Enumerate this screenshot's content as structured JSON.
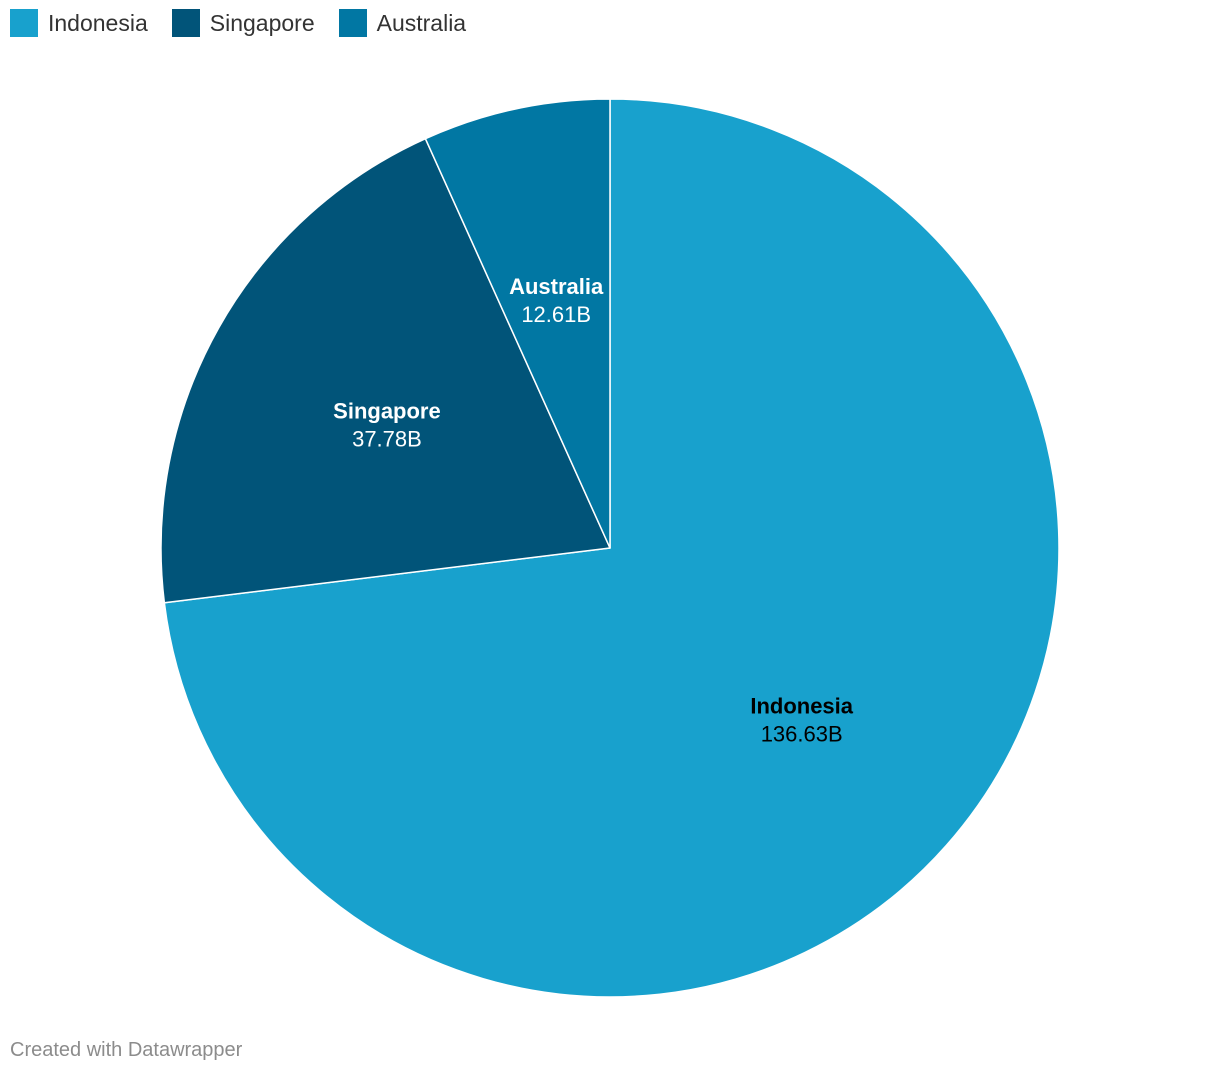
{
  "chart_data": {
    "type": "pie",
    "title": "",
    "slices": [
      {
        "label": "Indonesia",
        "value": 136.63,
        "value_label": "136.63B",
        "color": "#18a1cd",
        "label_color": "#000000"
      },
      {
        "label": "Singapore",
        "value": 37.78,
        "value_label": "37.78B",
        "color": "#015479",
        "label_color": "#ffffff"
      },
      {
        "label": "Australia",
        "value": 12.61,
        "value_label": "12.61B",
        "color": "#0177a3",
        "label_color": "#ffffff"
      }
    ],
    "start_angle": "12 o'clock",
    "direction": "clockwise",
    "legend_position": "top-left"
  },
  "legend": {
    "items": [
      {
        "label": "Indonesia",
        "color": "#18a1cd"
      },
      {
        "label": "Singapore",
        "color": "#015479"
      },
      {
        "label": "Australia",
        "color": "#0177a3"
      }
    ]
  },
  "footer": {
    "credit": "Created with Datawrapper"
  }
}
